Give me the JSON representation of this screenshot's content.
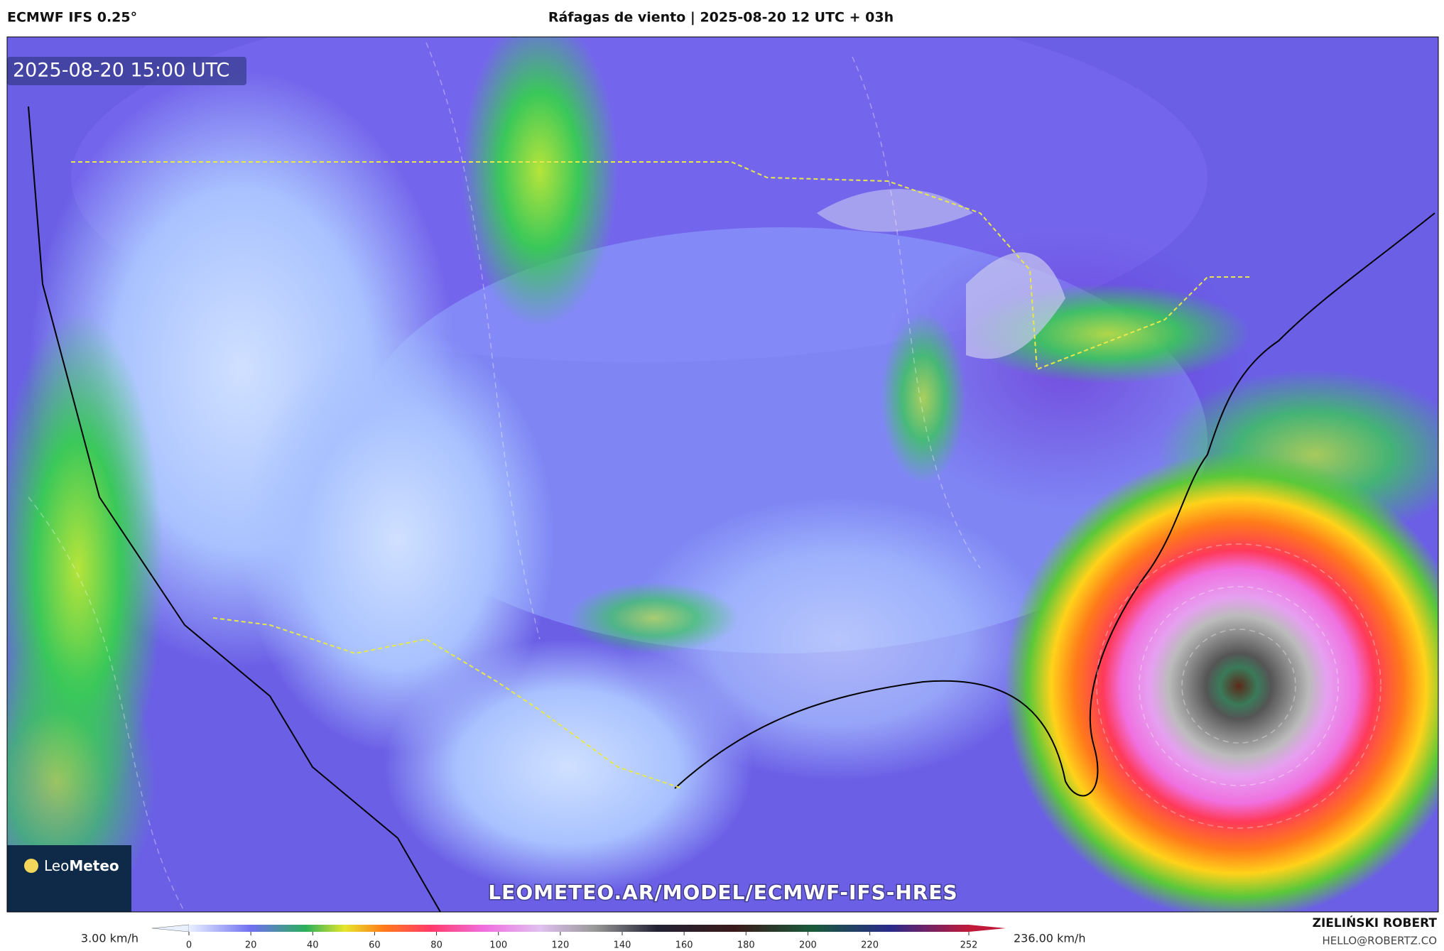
{
  "header": {
    "model": "ECMWF IFS 0.25°",
    "title": "Ráfagas de viento | 2025-08-20 12 UTC + 03h"
  },
  "map": {
    "timestamp": "2025-08-20 15:00 UTC",
    "watermark": "LEOMETEO.AR/MODEL/ECMWF-IFS-HRES",
    "logo": {
      "brand_light": "Leo",
      "brand_bold": "Meteo"
    }
  },
  "colorbar": {
    "min_label": "3.00 km/h",
    "max_label": "236.00 km/h",
    "ticks": [
      0,
      20,
      40,
      60,
      80,
      100,
      120,
      140,
      160,
      180,
      200,
      220,
      252
    ]
  },
  "credits": {
    "name": "ZIELIŃSKI ROBERT",
    "email": "HELLO@ROBERTZ.CO"
  }
}
